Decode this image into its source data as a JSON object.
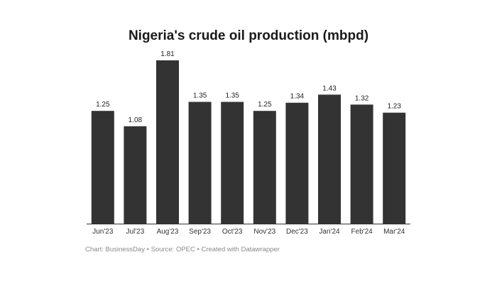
{
  "chart_data": {
    "type": "bar",
    "title": "Nigeria's crude oil production (mbpd)",
    "categories": [
      "Jun'23",
      "Jul'23",
      "Aug'23",
      "Sep'23",
      "Oct'23",
      "Nov'23",
      "Dec'23",
      "Jan'24",
      "Feb'24",
      "Mar'24"
    ],
    "values": [
      1.25,
      1.08,
      1.81,
      1.35,
      1.35,
      1.25,
      1.34,
      1.43,
      1.32,
      1.23
    ],
    "value_labels": [
      "1.25",
      "1.08",
      "1.81",
      "1.35",
      "1.35",
      "1.25",
      "1.34",
      "1.43",
      "1.32",
      "1.23"
    ],
    "xlabel": "",
    "ylabel": "",
    "ylim": [
      0,
      1.81
    ],
    "grid": false,
    "bar_color": "#333333"
  },
  "footer": {
    "chart_credit": "Chart: BusinessDay",
    "source": "Source: OPEC",
    "created_with": "Created with Datawrapper"
  }
}
